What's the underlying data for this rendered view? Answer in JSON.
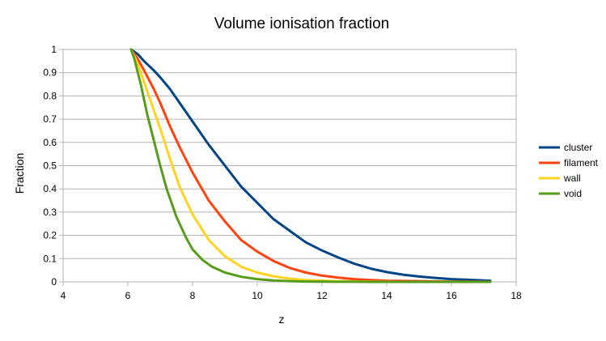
{
  "chart_data": {
    "type": "line",
    "title": "Volume ionisation fraction",
    "xlabel": "z",
    "ylabel": "Fraction",
    "xlim": [
      4,
      18
    ],
    "ylim": [
      0,
      1
    ],
    "xticks": [
      4,
      6,
      8,
      10,
      12,
      14,
      16,
      18
    ],
    "yticks": [
      0,
      0.1,
      0.2,
      0.3,
      0.4,
      0.5,
      0.6,
      0.7,
      0.8,
      0.9,
      1
    ],
    "xtick_labels": [
      "4",
      "6",
      "8",
      "10",
      "12",
      "14",
      "16",
      "18"
    ],
    "ytick_labels": [
      "0",
      "0.1",
      "0.2",
      "0.3",
      "0.4",
      "0.5",
      "0.6",
      "0.7",
      "0.8",
      "0.9",
      "1"
    ],
    "grid": "horizontal",
    "legend_position": "right",
    "series": [
      {
        "name": "cluster",
        "color": "#004586",
        "x": [
          6.1,
          6.3,
          6.5,
          6.8,
          7.0,
          7.3,
          7.6,
          8.0,
          8.5,
          9.0,
          9.5,
          10.0,
          10.5,
          11.0,
          11.5,
          12.0,
          12.5,
          13.0,
          13.5,
          14.0,
          14.5,
          15.0,
          15.5,
          16.0,
          16.5,
          17.0,
          17.2
        ],
        "y": [
          1.0,
          0.98,
          0.95,
          0.91,
          0.88,
          0.83,
          0.77,
          0.69,
          0.59,
          0.5,
          0.41,
          0.34,
          0.27,
          0.22,
          0.17,
          0.135,
          0.105,
          0.078,
          0.057,
          0.042,
          0.031,
          0.023,
          0.017,
          0.012,
          0.009,
          0.006,
          0.005
        ]
      },
      {
        "name": "filament",
        "color": "#ff420e",
        "x": [
          6.1,
          6.3,
          6.5,
          6.8,
          7.0,
          7.3,
          7.6,
          8.0,
          8.5,
          9.0,
          9.5,
          10.0,
          10.5,
          11.0,
          11.5,
          12.0,
          12.5,
          13.0,
          13.5,
          14.0,
          14.5,
          15.0,
          15.5,
          16.0,
          16.5,
          17.0,
          17.2
        ],
        "y": [
          1.0,
          0.96,
          0.91,
          0.83,
          0.77,
          0.67,
          0.58,
          0.47,
          0.35,
          0.26,
          0.18,
          0.13,
          0.09,
          0.06,
          0.04,
          0.027,
          0.018,
          0.012,
          0.008,
          0.005,
          0.004,
          0.003,
          0.002,
          0.001,
          0.001,
          0.0005,
          0.0
        ]
      },
      {
        "name": "wall",
        "color": "#ffd320",
        "x": [
          6.1,
          6.3,
          6.5,
          6.8,
          7.0,
          7.3,
          7.6,
          8.0,
          8.5,
          9.0,
          9.5,
          10.0,
          10.5,
          11.0,
          11.5,
          12.0,
          12.5,
          13.0,
          13.5,
          14.0,
          14.5,
          15.0,
          15.5,
          16.0,
          16.5,
          17.0,
          17.2
        ],
        "y": [
          1.0,
          0.94,
          0.86,
          0.74,
          0.66,
          0.53,
          0.41,
          0.29,
          0.18,
          0.11,
          0.065,
          0.04,
          0.024,
          0.014,
          0.008,
          0.005,
          0.003,
          0.002,
          0.001,
          0.0005,
          0.0,
          0.0,
          0.0,
          0.0,
          0.0,
          0.0,
          0.0
        ]
      },
      {
        "name": "void",
        "color": "#579d1c",
        "x": [
          6.1,
          6.2,
          6.4,
          6.6,
          6.8,
          7.0,
          7.2,
          7.5,
          7.8,
          8.0,
          8.3,
          8.6,
          9.0,
          9.5,
          10.0,
          10.5,
          11.0,
          11.5,
          12.0,
          12.5,
          13.0,
          13.5,
          14.0,
          15.0,
          16.0,
          17.0,
          17.2
        ],
        "y": [
          1.0,
          0.96,
          0.85,
          0.72,
          0.61,
          0.5,
          0.4,
          0.28,
          0.19,
          0.14,
          0.095,
          0.065,
          0.04,
          0.022,
          0.012,
          0.006,
          0.003,
          0.0015,
          0.0008,
          0.0004,
          0.0002,
          0.0001,
          0.0,
          0.0,
          0.0,
          0.0,
          0.0
        ]
      }
    ]
  }
}
